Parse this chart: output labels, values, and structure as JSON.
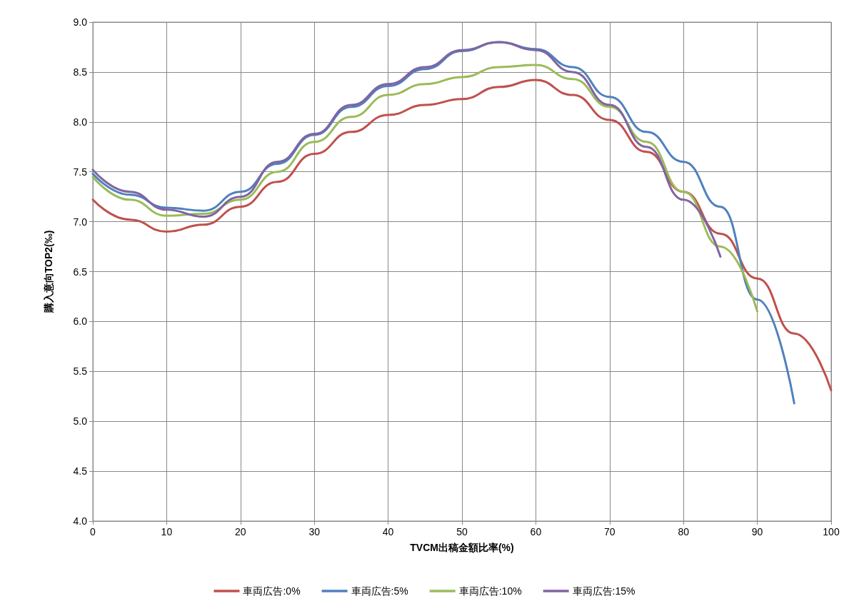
{
  "chart_data": {
    "type": "line",
    "xlabel": "TVCM出稿金額比率(%)",
    "ylabel": "購入意向TOP2(‰)",
    "xlim": [
      0,
      100
    ],
    "xticks": [
      0,
      10,
      20,
      30,
      40,
      50,
      60,
      70,
      80,
      90,
      100
    ],
    "ylim": [
      4,
      9
    ],
    "yticks": [
      {
        "value": 4,
        "label": "4.0"
      },
      {
        "value": 4.5,
        "label": "4.5"
      },
      {
        "value": 5,
        "label": "5.0"
      },
      {
        "value": 5.5,
        "label": "5.5"
      },
      {
        "value": 6,
        "label": "6.0"
      },
      {
        "value": 6.5,
        "label": "6.5"
      },
      {
        "value": 7,
        "label": "7.0"
      },
      {
        "value": 7.5,
        "label": "7.5"
      },
      {
        "value": 8,
        "label": "8.0"
      },
      {
        "value": 8.5,
        "label": "8.5"
      },
      {
        "value": 9,
        "label": "9.0"
      }
    ],
    "grid": true,
    "legend": "bottom",
    "marker": "none",
    "line_style": "solid",
    "x": [
      0,
      5,
      10,
      15,
      20,
      25,
      30,
      35,
      40,
      45,
      50,
      55,
      60,
      65,
      70,
      75,
      80,
      85,
      90,
      95,
      100
    ],
    "series": [
      {
        "name": "車両広告:0%",
        "color": "#c0504d",
        "values": [
          7.22,
          7.02,
          6.9,
          6.97,
          7.15,
          7.4,
          7.68,
          7.9,
          8.07,
          8.17,
          8.23,
          8.35,
          8.42,
          8.27,
          8.02,
          7.7,
          7.3,
          6.88,
          6.43,
          5.88,
          5.31
        ]
      },
      {
        "name": "車両広告:5%",
        "color": "#4f81bd",
        "values": [
          7.48,
          7.27,
          7.14,
          7.11,
          7.3,
          7.58,
          7.87,
          8.15,
          8.36,
          8.53,
          8.71,
          8.8,
          8.73,
          8.55,
          8.25,
          7.9,
          7.6,
          7.15,
          6.22,
          5.18,
          null
        ]
      },
      {
        "name": "車両広告:10%",
        "color": "#9bbb59",
        "values": [
          7.45,
          7.22,
          7.06,
          7.08,
          7.22,
          7.5,
          7.8,
          8.05,
          8.27,
          8.38,
          8.45,
          8.55,
          8.57,
          8.43,
          8.15,
          7.8,
          7.3,
          6.75,
          6.1,
          null,
          null
        ]
      },
      {
        "name": "車両広告:15%",
        "color": "#8064a2",
        "values": [
          7.52,
          7.3,
          7.12,
          7.05,
          7.25,
          7.6,
          7.88,
          8.17,
          8.38,
          8.55,
          8.72,
          8.8,
          8.72,
          8.5,
          8.17,
          7.75,
          7.22,
          6.65,
          null,
          null,
          null
        ]
      }
    ]
  }
}
